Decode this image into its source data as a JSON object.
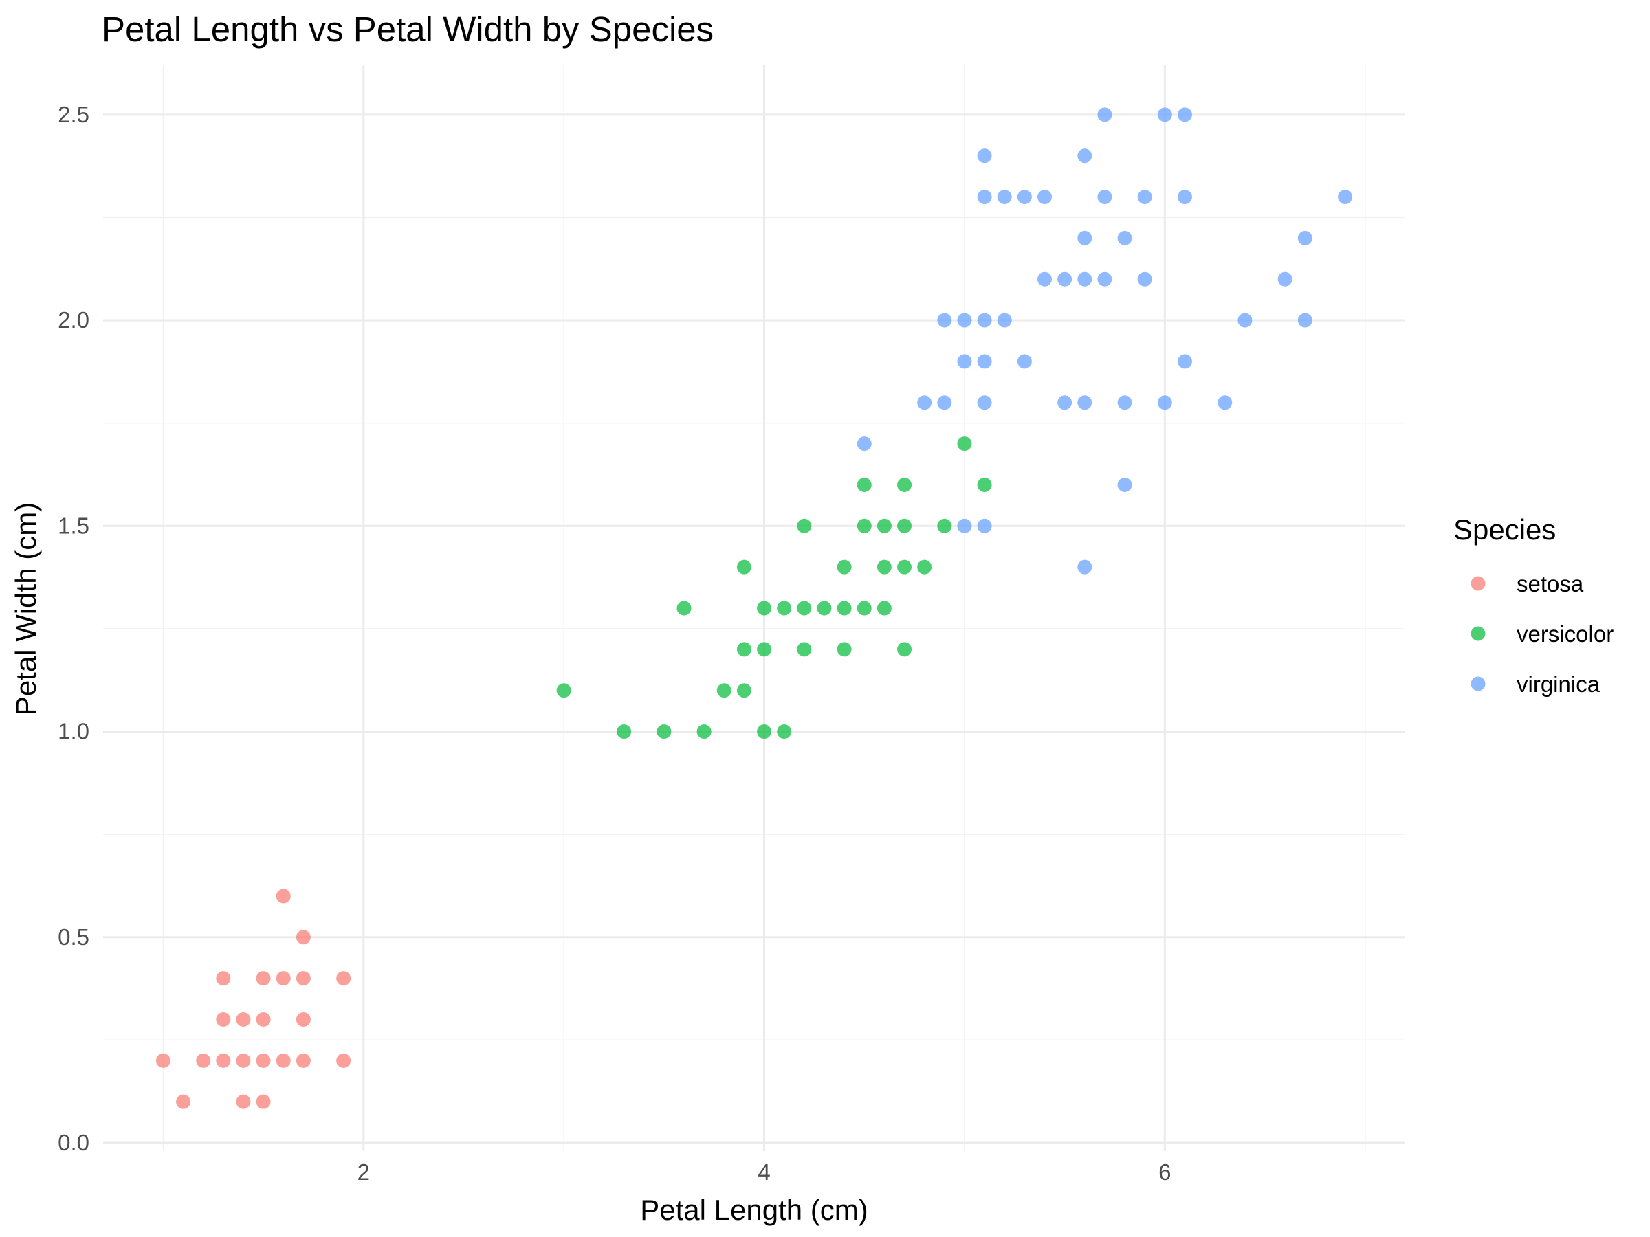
{
  "chart_data": {
    "type": "scatter",
    "title": "Petal Length vs Petal Width by Species",
    "xlabel": "Petal Length (cm)",
    "ylabel": "Petal Width (cm)",
    "xlim": [
      0.7,
      7.2
    ],
    "ylim": [
      -0.02,
      2.62
    ],
    "x_ticks": [
      2,
      4,
      6
    ],
    "x_tick_labels": [
      "2",
      "4",
      "6"
    ],
    "y_ticks": [
      0,
      0.5,
      1,
      1.5,
      2,
      2.5
    ],
    "y_tick_labels": [
      "0.0",
      "0.5",
      "1.0",
      "1.5",
      "2.0",
      "2.5"
    ],
    "x_minor_ticks": [
      1,
      3,
      5,
      7
    ],
    "y_minor_ticks": [
      0.25,
      0.75,
      1.25,
      1.75,
      2.25
    ],
    "grid": true,
    "legend_position": "right",
    "legend_title": "Species",
    "series": [
      {
        "name": "setosa",
        "color": "#F8766D",
        "points": [
          [
            1.0,
            0.2
          ],
          [
            1.1,
            0.1
          ],
          [
            1.2,
            0.2
          ],
          [
            1.3,
            0.2
          ],
          [
            1.3,
            0.3
          ],
          [
            1.3,
            0.4
          ],
          [
            1.4,
            0.1
          ],
          [
            1.4,
            0.2
          ],
          [
            1.4,
            0.3
          ],
          [
            1.5,
            0.1
          ],
          [
            1.5,
            0.2
          ],
          [
            1.5,
            0.3
          ],
          [
            1.5,
            0.4
          ],
          [
            1.6,
            0.2
          ],
          [
            1.6,
            0.4
          ],
          [
            1.6,
            0.6
          ],
          [
            1.7,
            0.2
          ],
          [
            1.7,
            0.3
          ],
          [
            1.7,
            0.4
          ],
          [
            1.7,
            0.5
          ],
          [
            1.9,
            0.2
          ],
          [
            1.9,
            0.4
          ]
        ]
      },
      {
        "name": "versicolor",
        "color": "#00BA38",
        "points": [
          [
            3.0,
            1.1
          ],
          [
            3.3,
            1.0
          ],
          [
            3.5,
            1.0
          ],
          [
            3.6,
            1.3
          ],
          [
            3.7,
            1.0
          ],
          [
            3.8,
            1.1
          ],
          [
            3.9,
            1.1
          ],
          [
            3.9,
            1.2
          ],
          [
            3.9,
            1.4
          ],
          [
            4.0,
            1.0
          ],
          [
            4.0,
            1.2
          ],
          [
            4.0,
            1.3
          ],
          [
            4.1,
            1.0
          ],
          [
            4.1,
            1.3
          ],
          [
            4.2,
            1.2
          ],
          [
            4.2,
            1.3
          ],
          [
            4.2,
            1.5
          ],
          [
            4.3,
            1.3
          ],
          [
            4.4,
            1.2
          ],
          [
            4.4,
            1.3
          ],
          [
            4.4,
            1.4
          ],
          [
            4.5,
            1.3
          ],
          [
            4.5,
            1.5
          ],
          [
            4.5,
            1.6
          ],
          [
            4.6,
            1.3
          ],
          [
            4.6,
            1.4
          ],
          [
            4.6,
            1.5
          ],
          [
            4.7,
            1.2
          ],
          [
            4.7,
            1.4
          ],
          [
            4.7,
            1.5
          ],
          [
            4.7,
            1.6
          ],
          [
            4.8,
            1.4
          ],
          [
            4.9,
            1.5
          ],
          [
            5.0,
            1.7
          ],
          [
            5.1,
            1.6
          ]
        ]
      },
      {
        "name": "virginica",
        "color": "#619CFF",
        "points": [
          [
            4.5,
            1.7
          ],
          [
            4.8,
            1.8
          ],
          [
            4.9,
            1.8
          ],
          [
            4.9,
            2.0
          ],
          [
            5.0,
            1.5
          ],
          [
            5.0,
            1.9
          ],
          [
            5.0,
            2.0
          ],
          [
            5.1,
            1.5
          ],
          [
            5.1,
            1.8
          ],
          [
            5.1,
            1.9
          ],
          [
            5.1,
            2.0
          ],
          [
            5.1,
            2.3
          ],
          [
            5.1,
            2.4
          ],
          [
            5.2,
            2.0
          ],
          [
            5.2,
            2.3
          ],
          [
            5.3,
            1.9
          ],
          [
            5.3,
            2.3
          ],
          [
            5.4,
            2.1
          ],
          [
            5.4,
            2.3
          ],
          [
            5.5,
            1.8
          ],
          [
            5.5,
            2.1
          ],
          [
            5.6,
            1.4
          ],
          [
            5.6,
            1.8
          ],
          [
            5.6,
            2.1
          ],
          [
            5.6,
            2.2
          ],
          [
            5.6,
            2.4
          ],
          [
            5.7,
            2.1
          ],
          [
            5.7,
            2.3
          ],
          [
            5.7,
            2.5
          ],
          [
            5.8,
            1.6
          ],
          [
            5.8,
            1.8
          ],
          [
            5.8,
            2.2
          ],
          [
            5.9,
            2.1
          ],
          [
            5.9,
            2.3
          ],
          [
            6.0,
            1.8
          ],
          [
            6.0,
            2.5
          ],
          [
            6.1,
            1.9
          ],
          [
            6.1,
            2.3
          ],
          [
            6.1,
            2.5
          ],
          [
            6.3,
            1.8
          ],
          [
            6.4,
            2.0
          ],
          [
            6.6,
            2.1
          ],
          [
            6.7,
            2.0
          ],
          [
            6.7,
            2.2
          ],
          [
            6.9,
            2.3
          ]
        ]
      }
    ]
  }
}
